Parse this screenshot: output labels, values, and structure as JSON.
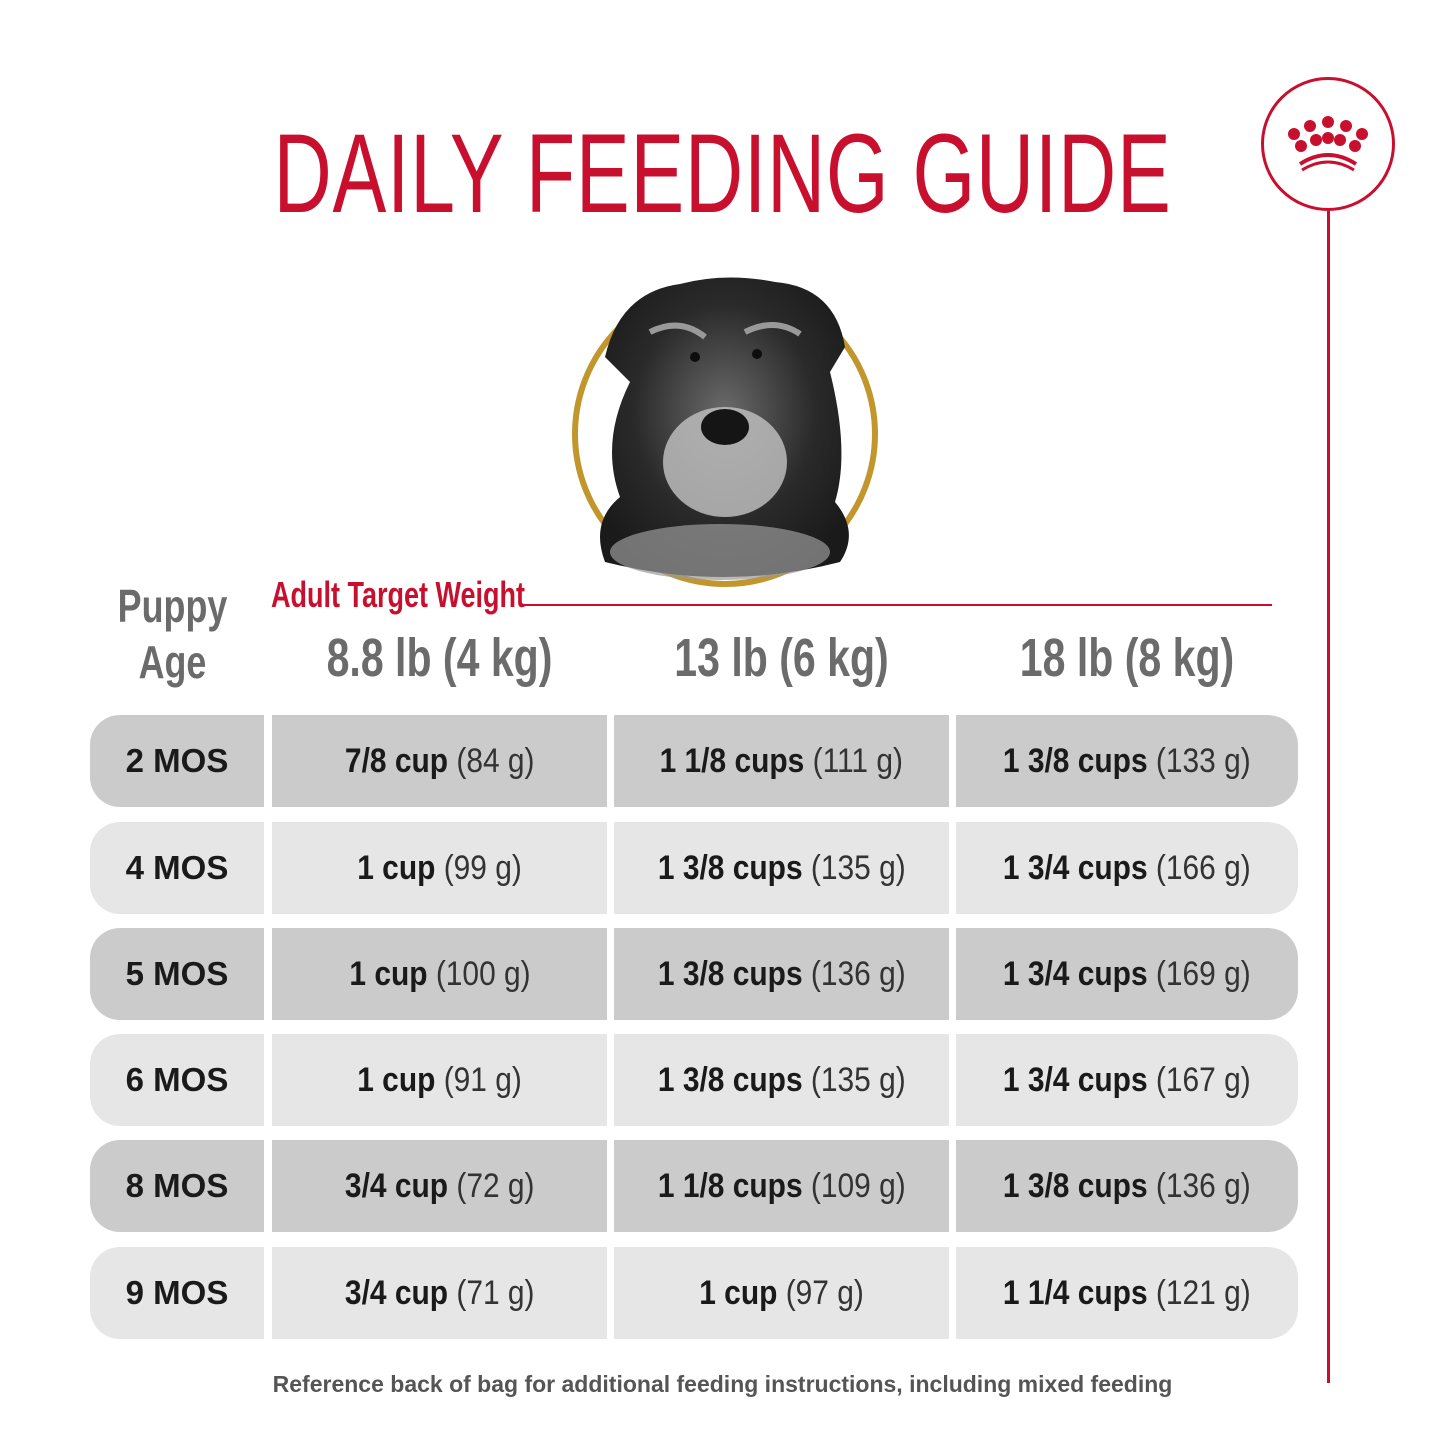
{
  "title": "DAILY FEEDING GUIDE",
  "colors": {
    "brand_red": "#c8102e",
    "gold_ring": "#c1962c",
    "header_gray": "#6b6b6b",
    "row_dark": "#cbcbcb",
    "row_light": "#e6e6e6",
    "footer_gray": "#555555"
  },
  "logo": {
    "icon": "crown-icon",
    "description": "Royal Canin crown logo in red circle"
  },
  "image": {
    "subject": "Miniature Schnauzer puppy in gold circle frame"
  },
  "table": {
    "age_header": {
      "line1": "Puppy",
      "line2": "Age"
    },
    "weight_group_label": "Adult Target Weight",
    "weight_columns": [
      "8.8 lb (4 kg)",
      "13 lb (6 kg)",
      "18 lb (8 kg)"
    ],
    "rows": [
      {
        "age": "2 MOS",
        "cells": [
          {
            "cups": "7/8 cup",
            "grams": "(84 g)"
          },
          {
            "cups": "1 1/8 cups",
            "grams": "(111 g)"
          },
          {
            "cups": "1 3/8 cups",
            "grams": "(133 g)"
          }
        ]
      },
      {
        "age": "4 MOS",
        "cells": [
          {
            "cups": "1 cup",
            "grams": "(99 g)"
          },
          {
            "cups": "1 3/8 cups",
            "grams": "(135 g)"
          },
          {
            "cups": "1 3/4 cups",
            "grams": "(166 g)"
          }
        ]
      },
      {
        "age": "5 MOS",
        "cells": [
          {
            "cups": "1 cup",
            "grams": "(100 g)"
          },
          {
            "cups": "1 3/8 cups",
            "grams": "(136 g)"
          },
          {
            "cups": "1 3/4 cups",
            "grams": "(169 g)"
          }
        ]
      },
      {
        "age": "6 MOS",
        "cells": [
          {
            "cups": "1 cup",
            "grams": "(91 g)"
          },
          {
            "cups": "1 3/8 cups",
            "grams": "(135 g)"
          },
          {
            "cups": "1 3/4 cups",
            "grams": "(167 g)"
          }
        ]
      },
      {
        "age": "8 MOS",
        "cells": [
          {
            "cups": "3/4 cup",
            "grams": "(72 g)"
          },
          {
            "cups": "1 1/8 cups",
            "grams": "(109 g)"
          },
          {
            "cups": "1 3/8 cups",
            "grams": "(136 g)"
          }
        ]
      },
      {
        "age": "9 MOS",
        "cells": [
          {
            "cups": "3/4 cup",
            "grams": "(71 g)"
          },
          {
            "cups": "1 cup",
            "grams": "(97 g)"
          },
          {
            "cups": "1 1/4 cups",
            "grams": "(121 g)"
          }
        ]
      }
    ]
  },
  "footer_note": "Reference back of bag for additional feeding instructions, including mixed feeding"
}
